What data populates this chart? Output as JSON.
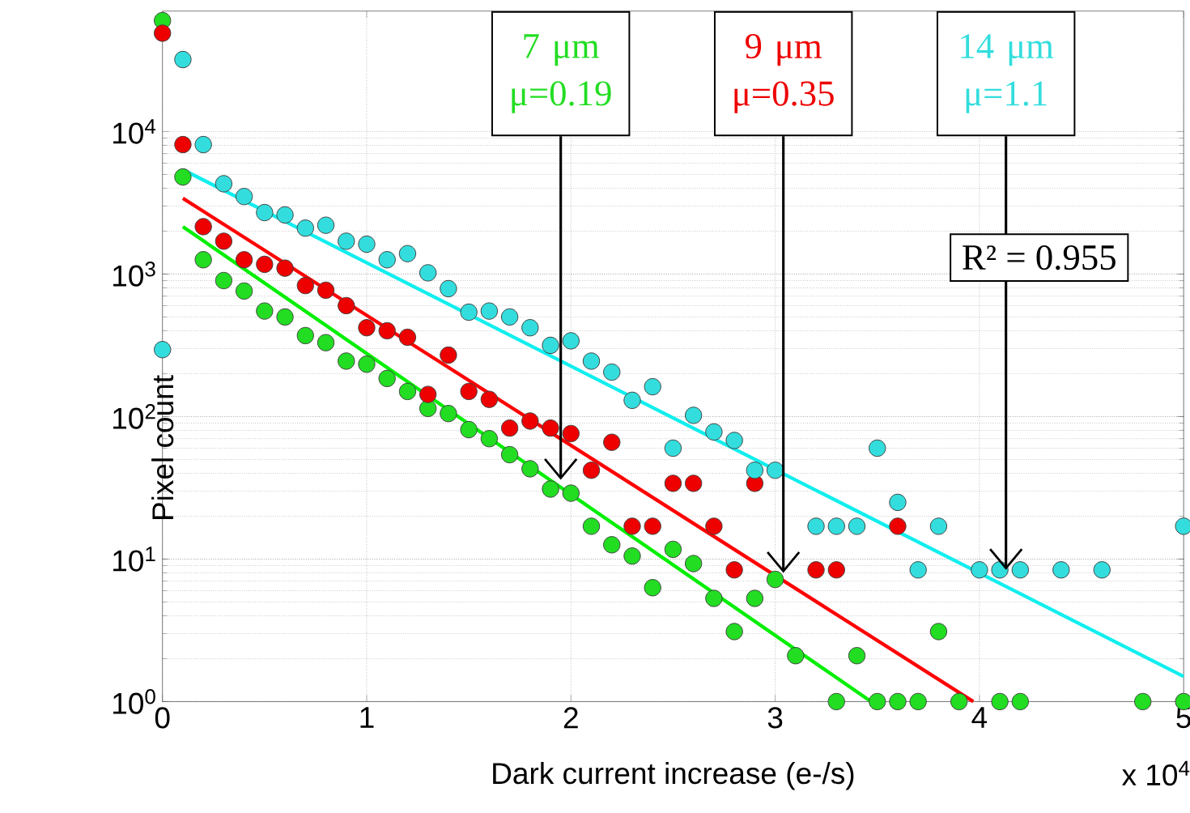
{
  "chart_data": {
    "type": "scatter",
    "xlabel": "Dark current increase (e-/s)",
    "ylabel": "Pixel count",
    "xlim": [
      0,
      5
    ],
    "ylim": [
      1,
      70000
    ],
    "log": "y",
    "grid": true,
    "marker": "circle",
    "xticks": [
      0,
      1,
      2,
      3,
      4,
      5
    ],
    "yticks": [
      {
        "value": 1,
        "label": "10$^{0}$"
      },
      {
        "value": 10,
        "label": "10$^{1}$"
      },
      {
        "value": 100,
        "label": "10$^{2}$"
      },
      {
        "value": 1000,
        "label": "10$^{3}$"
      },
      {
        "value": 10000,
        "label": "10$^{4}$"
      }
    ],
    "series": [
      {
        "color": "#22dd22",
        "x": [
          0,
          0.1,
          0.2,
          0.3,
          0.4,
          0.5,
          0.6,
          0.7,
          0.8,
          0.9,
          1.0,
          1.1,
          1.2,
          1.3,
          1.4,
          1.5,
          1.6,
          1.7,
          1.8,
          1.9,
          2.0,
          2.1,
          2.2,
          2.3,
          2.4,
          2.5,
          2.6,
          2.7,
          2.8,
          2.9,
          3.0,
          3.1,
          3.3,
          3.4,
          3.5,
          3.6,
          3.7,
          3.8,
          3.9,
          4.1,
          4.2,
          4.8,
          5.0
        ],
        "values": [
          60000,
          4800,
          1260,
          900,
          760,
          550,
          500,
          370,
          330,
          245,
          233,
          185,
          150,
          114,
          105,
          81,
          70,
          54,
          43,
          31,
          29,
          17,
          12.6,
          10.5,
          6.3,
          11.7,
          9.3,
          5.3,
          3.1,
          5.3,
          7.2,
          2.1,
          1,
          2.1,
          1,
          1,
          1,
          3.1,
          1,
          1,
          1,
          1,
          1
        ]
      },
      {
        "color": "#ee0000",
        "x": [
          0,
          0.1,
          0.2,
          0.3,
          0.4,
          0.5,
          0.6,
          0.7,
          0.8,
          0.9,
          1.0,
          1.1,
          1.2,
          1.3,
          1.4,
          1.5,
          1.6,
          1.7,
          1.8,
          1.9,
          2.0,
          2.1,
          2.2,
          2.3,
          2.4,
          2.5,
          2.6,
          2.7,
          2.8,
          2.9,
          3.2,
          3.3,
          3.6
        ],
        "values": [
          49000,
          8100,
          2150,
          1700,
          1260,
          1170,
          1100,
          830,
          770,
          600,
          420,
          400,
          360,
          143,
          270,
          150,
          132,
          83,
          93,
          83,
          76,
          42,
          66,
          17,
          17,
          34,
          34,
          17,
          8.4,
          34,
          8.4,
          8.4,
          17
        ]
      },
      {
        "color": "#33dddd",
        "x": [
          0,
          0.1,
          0.2,
          0.3,
          0.4,
          0.5,
          0.6,
          0.7,
          0.8,
          0.9,
          1.0,
          1.1,
          1.2,
          1.3,
          1.4,
          1.5,
          1.6,
          1.7,
          1.8,
          1.9,
          2.0,
          2.1,
          2.2,
          2.3,
          2.4,
          2.5,
          2.6,
          2.7,
          2.8,
          2.9,
          3.0,
          3.2,
          3.3,
          3.4,
          3.5,
          3.6,
          3.7,
          3.8,
          4.0,
          4.1,
          4.2,
          4.4,
          4.6,
          5.0
        ],
        "values": [
          295,
          32000,
          8100,
          4300,
          3500,
          2700,
          2600,
          2100,
          2200,
          1700,
          1620,
          1260,
          1390,
          1020,
          790,
          540,
          550,
          500,
          420,
          316,
          340,
          245,
          205,
          130,
          162,
          60,
          102,
          78,
          68,
          42,
          42,
          17,
          17,
          17,
          60,
          25,
          8.4,
          17,
          8.4,
          8.4,
          8.4,
          8.4,
          8.4,
          17
        ]
      },
      {
        "type": "line",
        "color": "#00ee00",
        "marker": "none",
        "x": [
          0.1,
          3.47
        ],
        "values": [
          2150,
          1
        ]
      },
      {
        "type": "line",
        "color": "#ff0000",
        "marker": "none",
        "x": [
          0.1,
          3.97
        ],
        "values": [
          3400,
          1
        ]
      },
      {
        "type": "line",
        "color": "#11eeee",
        "marker": "none",
        "x": [
          0.1,
          5.0
        ],
        "values": [
          5400,
          1.5
        ]
      }
    ],
    "annotations": [
      {
        "text": "7 μm μ=0.19",
        "x": 1.95,
        "y": 36
      },
      {
        "text": "9 μm μ=0.35",
        "x": 3.04,
        "y": 8
      },
      {
        "text": "14 μm μ=1.1",
        "x": 4.13,
        "y": 8.4
      },
      "R² = 0.955",
      "x 10$^{4}$"
    ]
  }
}
